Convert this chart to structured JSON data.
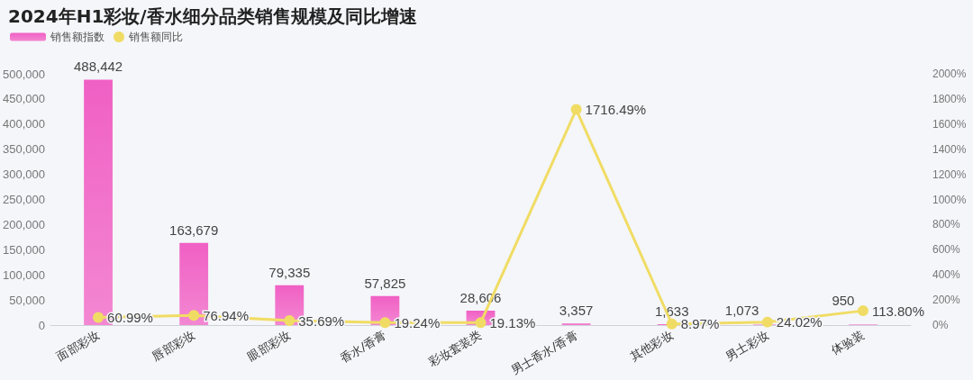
{
  "chart_data": {
    "type": "bar",
    "title": "2024年H1彩妆/香水细分品类销售规模及同比增速",
    "categories": [
      "面部彩妆",
      "唇部彩妆",
      "眼部彩妆",
      "香水/香膏",
      "彩妆套装类",
      "男士香水/香膏",
      "其他彩妆",
      "男士彩妆",
      "体验装"
    ],
    "series": [
      {
        "name": "销售额指数",
        "color": "#f060c4",
        "values": [
          488442,
          163679,
          79335,
          57825,
          28606,
          3357,
          1633,
          1073,
          950
        ],
        "value_labels": [
          "488,442",
          "163,679",
          "79,335",
          "57,825",
          "28,606",
          "3,357",
          "1,633",
          "1,073",
          "950"
        ]
      },
      {
        "name": "销售额同比",
        "type": "line",
        "axis": "y2",
        "color": "#f0dc64",
        "marker": "circle",
        "values": [
          60.99,
          76.94,
          35.69,
          19.24,
          19.13,
          1716.49,
          8.97,
          24.02,
          113.8
        ],
        "value_labels": [
          "60.99%",
          "76.94%",
          "35.69%",
          "19.24%",
          "19.13%",
          "1716.49%",
          "8.97%",
          "24.02%",
          "113.80%"
        ]
      }
    ],
    "ylim": [
      0,
      500000
    ],
    "yticks": [
      0,
      {
        "value": 50000,
        "label": "50,000"
      },
      {
        "value": 100000,
        "label": "100,000"
      },
      {
        "value": 150000,
        "label": "150,000"
      },
      {
        "value": 200000,
        "label": "200,000"
      },
      {
        "value": 250000,
        "label": "250,000"
      },
      {
        "value": 300000,
        "label": "300,000"
      },
      {
        "value": 350000,
        "label": "350,000"
      },
      {
        "value": 400000,
        "label": "400,000"
      },
      {
        "value": 450000,
        "label": "450,000"
      },
      {
        "value": 500000,
        "label": "500,000"
      }
    ],
    "y2lim": [
      0,
      2000
    ],
    "y2ticks": [
      {
        "value": 0,
        "label": "0%"
      },
      {
        "value": 200,
        "label": "200%"
      },
      {
        "value": 400,
        "label": "400%"
      },
      {
        "value": 600,
        "label": "600%"
      },
      {
        "value": 800,
        "label": "800%"
      },
      {
        "value": 1000,
        "label": "1000%"
      },
      {
        "value": 1200,
        "label": "1200%"
      },
      {
        "value": 1400,
        "label": "1400%"
      },
      {
        "value": 1600,
        "label": "1600%"
      },
      {
        "value": 1800,
        "label": "1800%"
      },
      {
        "value": 2000,
        "label": "2000%"
      }
    ],
    "legend": "top left"
  }
}
